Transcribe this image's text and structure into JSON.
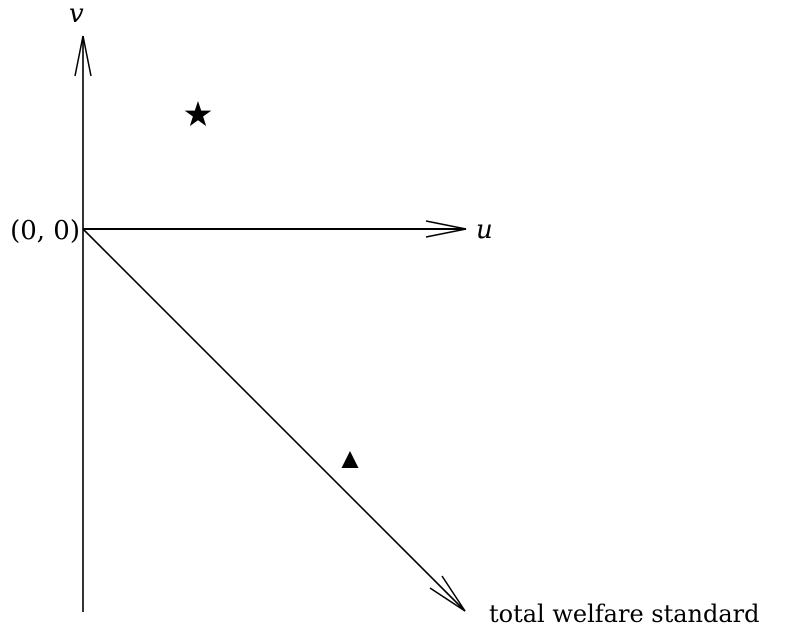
{
  "labels": {
    "v_axis": "v",
    "u_axis": "u",
    "origin": "(0, 0)",
    "diagonal": "total welfare standard"
  },
  "markers": {
    "star": "star-icon",
    "triangle": "triangle-icon"
  },
  "colors": {
    "ink": "#000000",
    "background": "#ffffff"
  }
}
